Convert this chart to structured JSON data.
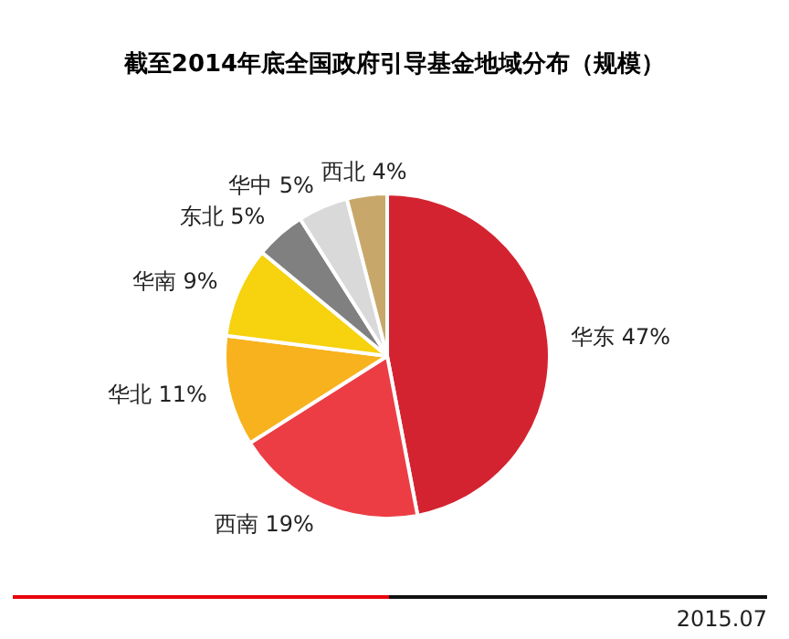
{
  "chart_data": {
    "type": "pie",
    "title": "截至2014年底全国政府引导基金地域分布（规模）",
    "categories": [
      "华东",
      "西南",
      "华北",
      "华南",
      "东北",
      "华中",
      "西北"
    ],
    "values": [
      47,
      19,
      11,
      9,
      5,
      5,
      4
    ],
    "value_labels": [
      "47%",
      "19%",
      "11%",
      "9%",
      "5%",
      "5%",
      "4%"
    ],
    "colors": [
      "#d42330",
      "#ec3d45",
      "#f7b21d",
      "#f6d20f",
      "#808080",
      "#d9d9d9",
      "#c8a86a"
    ],
    "legend": false,
    "annotations": [
      "2015.07"
    ]
  }
}
